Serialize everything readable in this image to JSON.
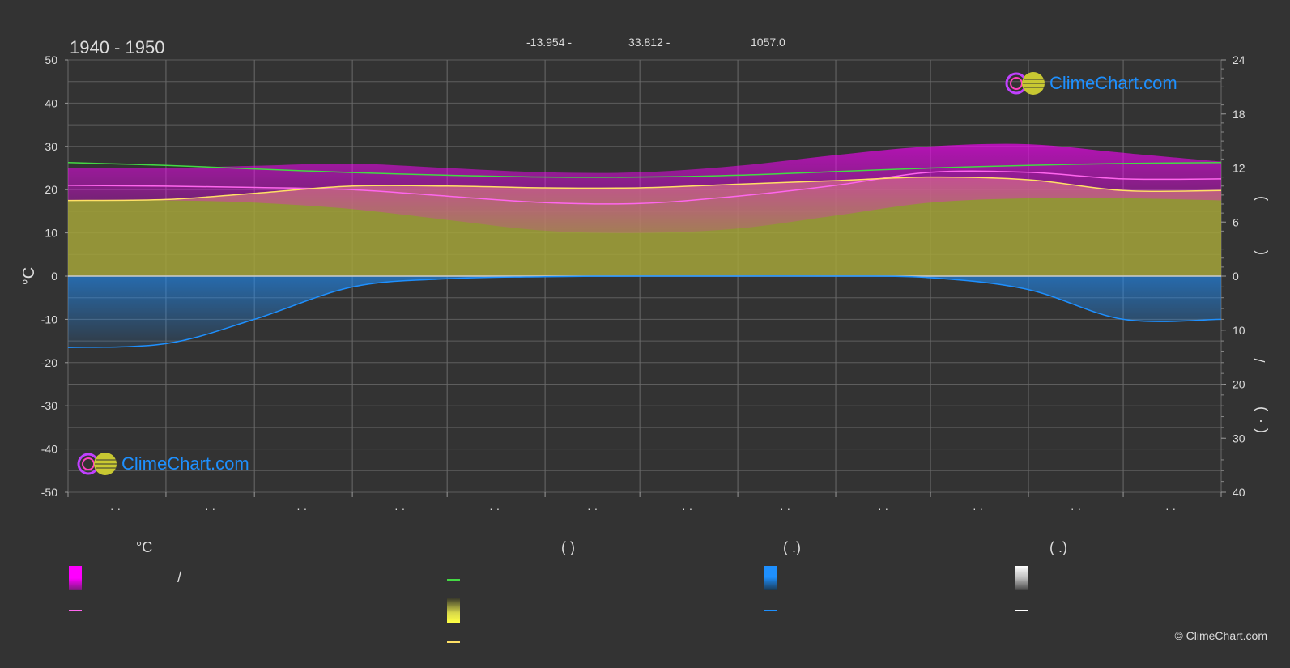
{
  "header": {
    "period": "1940 - 1950",
    "lat": "-13.954 -",
    "lon": "33.812 -",
    "elev": "1057.0"
  },
  "logo": {
    "text": "ClimeChart.com"
  },
  "copyright": "© ClimeChart.com",
  "legend": {
    "temp_head": "°C",
    "sun_head": "(          )",
    "rain_head": "(   .)",
    "snow_head": "(   .)",
    "slash": "/"
  },
  "chart_data": {
    "type": "area",
    "xlim": [
      0,
      365
    ],
    "month_ticks": [
      "· ·",
      "· ·",
      "· ·",
      "· ·",
      "· ·",
      "· ·",
      "· ·",
      "· ·",
      "· ·",
      "· ·",
      "· ·",
      "· ·"
    ],
    "left_axis": {
      "label": "°C",
      "ylim": [
        -50,
        50
      ],
      "ticks": [
        50,
        40,
        30,
        20,
        10,
        0,
        -10,
        -20,
        -30,
        -40,
        -50
      ]
    },
    "right_axis_hours": {
      "ticks": [
        24,
        18,
        12,
        6,
        0
      ],
      "range": [
        0,
        24
      ]
    },
    "right_axis_precip": {
      "ticks": [
        10,
        20,
        30,
        40
      ],
      "range": [
        0,
        40
      ]
    },
    "right_axis_label_glyphs": [
      ")",
      "(",
      "/",
      ")",
      "·",
      "("
    ],
    "colors": {
      "daylight": "#44d944",
      "sunshine": "#ffe066",
      "mean_temp": "#ff66ee",
      "rain": "#1e90ff",
      "temp_band": "#c020c0",
      "sun_band": "#b4b432",
      "rain_band": "#1a5f9a"
    },
    "x": [
      0,
      31,
      59,
      90,
      120,
      151,
      181,
      212,
      243,
      273,
      304,
      334,
      365
    ],
    "series": [
      {
        "key": "daylight",
        "unit": "h",
        "values": [
          12.6,
          12.3,
          11.9,
          11.5,
          11.2,
          11.0,
          11.0,
          11.2,
          11.6,
          12.0,
          12.3,
          12.5,
          12.6
        ]
      },
      {
        "key": "sunshine",
        "unit": "h",
        "values": [
          8.4,
          8.5,
          9.2,
          10.0,
          10.0,
          9.8,
          9.8,
          10.2,
          10.6,
          11.0,
          10.7,
          9.5,
          9.5
        ]
      },
      {
        "key": "mean_temp",
        "unit": "°C",
        "values": [
          21.0,
          20.8,
          20.5,
          20.0,
          18.5,
          17.0,
          16.8,
          18.5,
          21.0,
          24.0,
          24.0,
          22.5,
          22.5
        ]
      },
      {
        "key": "temp_max",
        "unit": "°C",
        "values": [
          25.0,
          25.0,
          25.5,
          26.0,
          25.0,
          24.0,
          24.0,
          25.5,
          28.0,
          30.0,
          30.5,
          28.5,
          26.5
        ]
      },
      {
        "key": "temp_min",
        "unit": "°C",
        "values": [
          17.5,
          17.5,
          17.0,
          15.5,
          13.0,
          10.5,
          10.0,
          11.0,
          14.0,
          17.0,
          18.0,
          18.0,
          17.5
        ]
      },
      {
        "key": "rain",
        "unit": "mm",
        "values": [
          13.2,
          12.5,
          8.0,
          2.0,
          0.5,
          0.1,
          0.0,
          0.0,
          0.0,
          0.3,
          2.5,
          8.0,
          8.0
        ]
      }
    ]
  }
}
